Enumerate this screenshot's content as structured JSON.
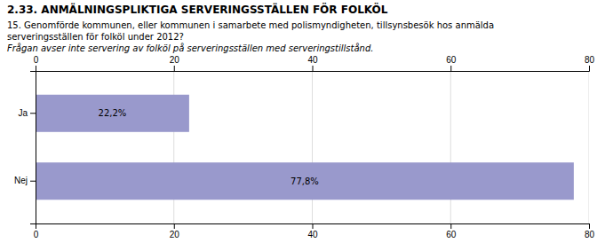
{
  "chart_data": {
    "type": "bar",
    "orientation": "horizontal",
    "title": "2.33. ANMÄLNINGSPLIKTIGA SERVERINGSSTÄLLEN FÖR FOLKÖL",
    "subtitle": [
      "15. Genomförde kommunen, eller kommunen i samarbete med polismyndigheten, tillsynsbesök hos anmälda",
      "serveringsställen för folköl under 2012?",
      "Frågan avser inte servering av folköl på serveringsställen med serveringstillstånd."
    ],
    "categories": [
      "Ja",
      "Nej"
    ],
    "values": [
      22.2,
      77.8
    ],
    "value_labels": [
      "22,2%",
      "77,8%"
    ],
    "data_labels": true,
    "color": "#9999cc",
    "xlim": [
      0,
      80
    ],
    "xticks": [
      0,
      20,
      40,
      60,
      80
    ],
    "grid": true
  }
}
